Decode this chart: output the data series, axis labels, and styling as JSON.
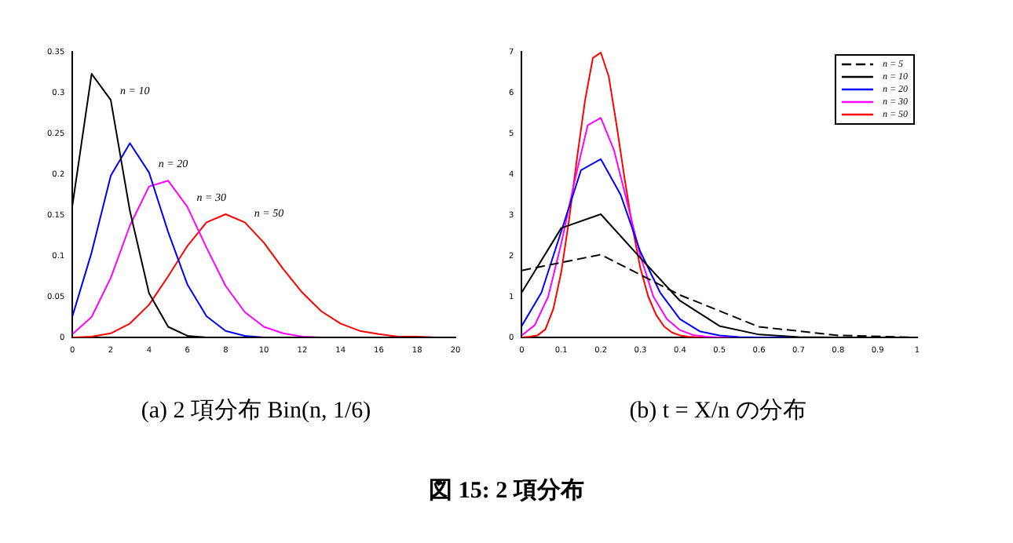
{
  "chart_data": [
    {
      "type": "line",
      "xlim": [
        0,
        20
      ],
      "ylim": [
        0,
        0.35
      ],
      "xticks": [
        0,
        2,
        4,
        6,
        8,
        10,
        12,
        14,
        16,
        18,
        20
      ],
      "yticks": [
        0,
        0.05,
        0.1,
        0.15,
        0.2,
        0.25,
        0.3,
        0.35
      ],
      "grid": false,
      "legend": false,
      "marker": "none",
      "annotations": [
        "(a) 2 項分布 Bin(n, 1/6)"
      ],
      "series": [
        {
          "name": "n = 10",
          "color": "#000000",
          "x": [
            0,
            1,
            2,
            3,
            4,
            5,
            6,
            7,
            8,
            9,
            10,
            11,
            12,
            13,
            14,
            15,
            16,
            17,
            18,
            19,
            20
          ],
          "values": [
            0.162,
            0.323,
            0.291,
            0.155,
            0.054,
            0.013,
            0.002,
            0,
            0,
            0,
            0,
            0,
            0,
            0,
            0,
            0,
            0,
            0,
            0,
            0,
            0
          ]
        },
        {
          "name": "n = 20",
          "color": "#0000ff",
          "x": [
            0,
            1,
            2,
            3,
            4,
            5,
            6,
            7,
            8,
            9,
            10,
            11
          ],
          "values": [
            0.026,
            0.104,
            0.198,
            0.238,
            0.202,
            0.129,
            0.065,
            0.026,
            0.008,
            0.002,
            0,
            0
          ]
        },
        {
          "name": "n = 30",
          "color": "#ff00ff",
          "x": [
            0,
            1,
            2,
            3,
            4,
            5,
            6,
            7,
            8,
            9,
            10,
            11,
            12,
            13,
            14
          ],
          "values": [
            0.004,
            0.025,
            0.073,
            0.137,
            0.185,
            0.192,
            0.16,
            0.11,
            0.063,
            0.031,
            0.013,
            0.005,
            0.001,
            0,
            0
          ]
        },
        {
          "name": "n = 50",
          "color": "#ff0000",
          "x": [
            0,
            1,
            2,
            3,
            4,
            5,
            6,
            7,
            8,
            9,
            10,
            11,
            12,
            13,
            14,
            15,
            16,
            17,
            18,
            19,
            20
          ],
          "values": [
            0,
            0.001,
            0.005,
            0.017,
            0.04,
            0.075,
            0.112,
            0.141,
            0.151,
            0.141,
            0.116,
            0.084,
            0.055,
            0.032,
            0.017,
            0.008,
            0.004,
            0.001,
            0.001,
            0,
            0
          ]
        }
      ]
    },
    {
      "type": "line",
      "xlim": [
        0,
        1
      ],
      "ylim": [
        0,
        7
      ],
      "xticks": [
        0,
        0.1,
        0.2,
        0.3,
        0.4,
        0.5,
        0.6,
        0.7,
        0.8,
        0.9,
        1
      ],
      "yticks": [
        0,
        1,
        2,
        3,
        4,
        5,
        6,
        7
      ],
      "grid": false,
      "legend": "top right",
      "marker": "none",
      "annotations": [
        "(b) t = X/n の分布"
      ],
      "series": [
        {
          "name": "n = 5",
          "color": "#000000",
          "line_style": "dashed",
          "x": [
            0,
            0.2,
            0.4,
            0.6,
            0.8,
            1
          ],
          "values": [
            1.64,
            2.03,
            1.04,
            0.26,
            0.05,
            0
          ]
        },
        {
          "name": "n = 10",
          "color": "#000000",
          "x": [
            0,
            0.1,
            0.2,
            0.3,
            0.4,
            0.5,
            0.6,
            0.7,
            0.8,
            0.9,
            1
          ],
          "values": [
            1.1,
            2.68,
            3.02,
            1.95,
            0.9,
            0.28,
            0.07,
            0.01,
            0,
            0,
            0
          ]
        },
        {
          "name": "n = 20",
          "color": "#0000ff",
          "x": [
            0,
            0.05,
            0.1,
            0.15,
            0.2,
            0.25,
            0.3,
            0.35,
            0.4,
            0.45,
            0.5,
            0.55,
            0.6,
            1
          ],
          "values": [
            0.28,
            1.1,
            2.6,
            4.1,
            4.37,
            3.5,
            2.1,
            1.1,
            0.45,
            0.15,
            0.05,
            0.01,
            0,
            0
          ]
        },
        {
          "name": "n = 30",
          "color": "#ff00ff",
          "x": [
            0,
            0.033,
            0.067,
            0.1,
            0.133,
            0.167,
            0.2,
            0.233,
            0.267,
            0.3,
            0.333,
            0.367,
            0.4,
            0.433,
            0.467,
            0.5,
            1
          ],
          "values": [
            0.05,
            0.3,
            1,
            2.3,
            3.8,
            5.2,
            5.38,
            4.6,
            3.3,
            2,
            1,
            0.45,
            0.18,
            0.06,
            0.02,
            0,
            0
          ]
        },
        {
          "name": "n = 50",
          "color": "#ff0000",
          "x": [
            0,
            0.02,
            0.04,
            0.06,
            0.08,
            0.1,
            0.12,
            0.14,
            0.16,
            0.18,
            0.2,
            0.22,
            0.24,
            0.26,
            0.28,
            0.3,
            0.32,
            0.34,
            0.36,
            0.38,
            0.4,
            0.42,
            0.44,
            0.46,
            1
          ],
          "values": [
            0,
            0.02,
            0.05,
            0.2,
            0.7,
            1.6,
            2.9,
            4.4,
            5.8,
            6.85,
            6.98,
            6.4,
            5.2,
            3.9,
            2.7,
            1.7,
            1,
            0.55,
            0.27,
            0.12,
            0.05,
            0.02,
            0.01,
            0,
            0
          ]
        }
      ]
    },
    {
      "type": "other",
      "title": "図 15: 2 項分布"
    }
  ]
}
